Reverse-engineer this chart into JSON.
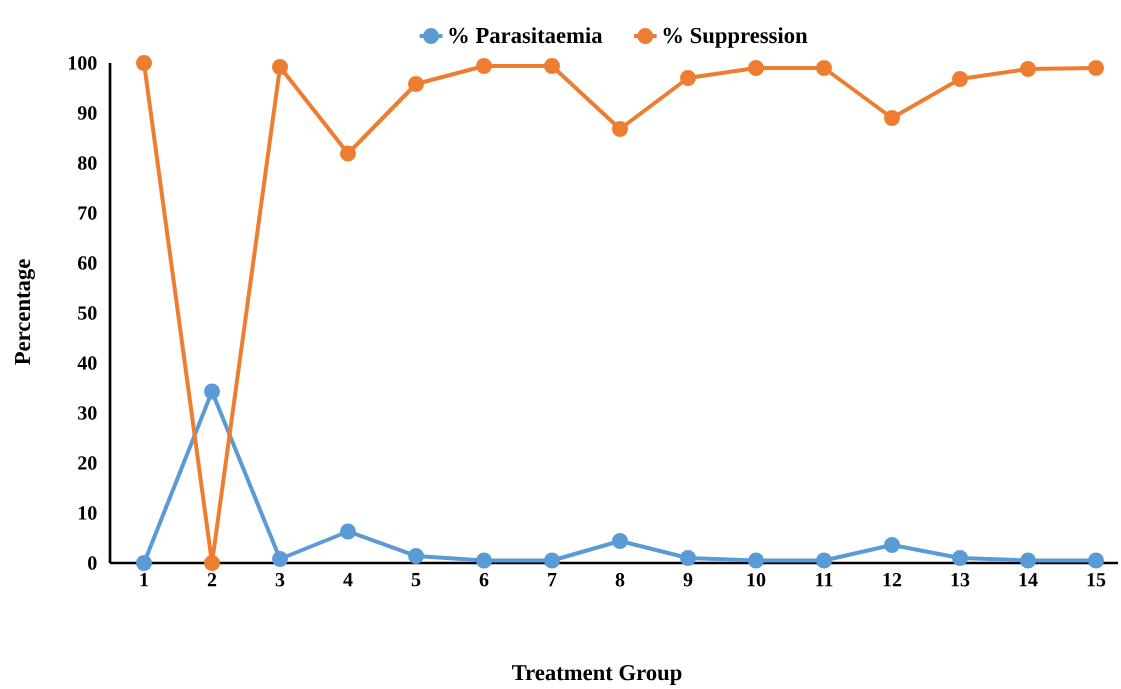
{
  "chart_data": {
    "type": "line",
    "xlabel": "Treatment Group",
    "ylabel": "Percentage",
    "categories": [
      "1",
      "2",
      "3",
      "4",
      "5",
      "6",
      "7",
      "8",
      "9",
      "10",
      "11",
      "12",
      "13",
      "14",
      "15"
    ],
    "series": [
      {
        "name": "% Parasitaemia",
        "color": "#5b9bd5",
        "values": [
          0,
          34.3,
          0.8,
          6.3,
          1.4,
          0.5,
          0.5,
          4.4,
          1.0,
          0.5,
          0.5,
          3.6,
          1.0,
          0.5,
          0.5
        ]
      },
      {
        "name": "% Suppression",
        "color": "#ed7d31",
        "values": [
          100,
          0,
          99.2,
          81.9,
          95.8,
          99.4,
          99.4,
          86.8,
          97,
          99,
          99,
          89,
          96.8,
          98.8,
          99
        ]
      }
    ],
    "ylim": [
      0,
      100
    ],
    "yticks": [
      0,
      10,
      20,
      30,
      40,
      50,
      60,
      70,
      80,
      90,
      100
    ],
    "legend": "top",
    "marker": "circle",
    "line_style": "solid",
    "grid": false
  }
}
